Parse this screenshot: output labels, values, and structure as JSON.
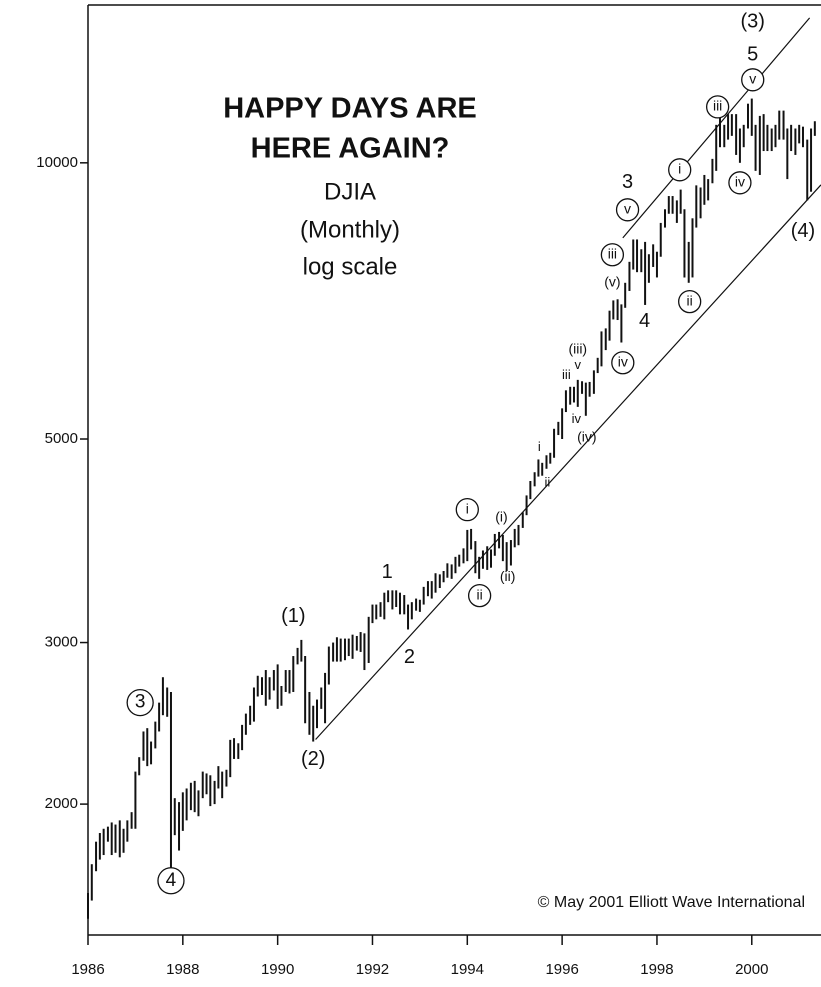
{
  "chart_data": {
    "type": "range_bar",
    "title": [
      "HAPPY DAYS ARE",
      "HERE AGAIN?"
    ],
    "subtitle": [
      "DJIA",
      "(Monthly)",
      "log scale"
    ],
    "note": "© May 2001 Elliott Wave International",
    "log_scale": true,
    "color": "#111111",
    "xlim": [
      1986,
      2001.46
    ],
    "xticks": [
      1986,
      1988,
      1990,
      1992,
      1994,
      1996,
      1998,
      2000
    ],
    "ylim": [
      1440,
      14860
    ],
    "yticks": [
      2000,
      3000,
      5000,
      10000
    ],
    "x": [
      1986,
      1986.08,
      1986.17,
      1986.25,
      1986.33,
      1986.42,
      1986.5,
      1986.58,
      1986.67,
      1986.75,
      1986.83,
      1986.92,
      1987,
      1987.08,
      1987.17,
      1987.25,
      1987.33,
      1987.42,
      1987.5,
      1987.58,
      1987.67,
      1987.75,
      1987.83,
      1987.92,
      1988,
      1988.08,
      1988.17,
      1988.25,
      1988.33,
      1988.42,
      1988.5,
      1988.58,
      1988.67,
      1988.75,
      1988.83,
      1988.92,
      1989,
      1989.08,
      1989.17,
      1989.25,
      1989.33,
      1989.42,
      1989.5,
      1989.58,
      1989.67,
      1989.75,
      1989.83,
      1989.92,
      1990,
      1990.08,
      1990.17,
      1990.25,
      1990.33,
      1990.42,
      1990.5,
      1990.58,
      1990.67,
      1990.75,
      1990.83,
      1990.92,
      1991,
      1991.08,
      1991.17,
      1991.25,
      1991.33,
      1991.42,
      1991.5,
      1991.58,
      1991.67,
      1991.75,
      1991.83,
      1991.92,
      1992,
      1992.08,
      1992.17,
      1992.25,
      1992.33,
      1992.42,
      1992.5,
      1992.58,
      1992.67,
      1992.75,
      1992.83,
      1992.92,
      1993,
      1993.08,
      1993.17,
      1993.25,
      1993.33,
      1993.42,
      1993.5,
      1993.58,
      1993.67,
      1993.75,
      1993.83,
      1993.92,
      1994,
      1994.08,
      1994.17,
      1994.25,
      1994.33,
      1994.42,
      1994.5,
      1994.58,
      1994.67,
      1994.75,
      1994.83,
      1994.92,
      1995,
      1995.08,
      1995.17,
      1995.25,
      1995.33,
      1995.42,
      1995.5,
      1995.58,
      1995.67,
      1995.75,
      1995.83,
      1995.92,
      1996,
      1996.08,
      1996.17,
      1996.25,
      1996.33,
      1996.42,
      1996.5,
      1996.58,
      1996.67,
      1996.75,
      1996.83,
      1996.92,
      1997,
      1997.08,
      1997.17,
      1997.25,
      1997.33,
      1997.42,
      1997.5,
      1997.58,
      1997.67,
      1997.75,
      1997.83,
      1997.92,
      1998,
      1998.08,
      1998.17,
      1998.25,
      1998.33,
      1998.42,
      1998.5,
      1998.58,
      1998.67,
      1998.75,
      1998.83,
      1998.92,
      1999,
      1999.08,
      1999.17,
      1999.25,
      1999.33,
      1999.42,
      1999.5,
      1999.58,
      1999.67,
      1999.75,
      1999.83,
      1999.92,
      2000,
      2000.08,
      2000.17,
      2000.25,
      2000.33,
      2000.42,
      2000.5,
      2000.58,
      2000.67,
      2000.75,
      2000.83,
      2000.92,
      2001,
      2001.08,
      2001.17,
      2001.25,
      2001.33
    ],
    "lows": [
      1500,
      1570,
      1690,
      1740,
      1760,
      1820,
      1760,
      1770,
      1750,
      1770,
      1820,
      1880,
      1880,
      2150,
      2230,
      2200,
      2210,
      2300,
      2400,
      2500,
      2490,
      1700,
      1850,
      1780,
      1870,
      1920,
      1970,
      1960,
      1940,
      2030,
      2050,
      1990,
      2000,
      2080,
      2030,
      2090,
      2140,
      2240,
      2240,
      2290,
      2380,
      2440,
      2460,
      2620,
      2630,
      2560,
      2600,
      2660,
      2540,
      2560,
      2650,
      2640,
      2650,
      2840,
      2860,
      2450,
      2380,
      2340,
      2420,
      2540,
      2450,
      2700,
      2860,
      2860,
      2860,
      2870,
      2900,
      2880,
      2940,
      2930,
      2800,
      2850,
      3150,
      3180,
      3200,
      3180,
      3320,
      3260,
      3280,
      3220,
      3220,
      3100,
      3180,
      3250,
      3240,
      3300,
      3370,
      3350,
      3400,
      3440,
      3490,
      3530,
      3520,
      3570,
      3630,
      3660,
      3680,
      3790,
      3570,
      3520,
      3610,
      3600,
      3620,
      3730,
      3800,
      3680,
      3590,
      3640,
      3810,
      3830,
      4000,
      4130,
      4300,
      4440,
      4550,
      4560,
      4640,
      4700,
      4770,
      5050,
      5000,
      5350,
      5450,
      5480,
      5420,
      5600,
      5300,
      5560,
      5600,
      5900,
      6000,
      6250,
      6400,
      6750,
      6740,
      6370,
      6950,
      7250,
      7650,
      7600,
      7600,
      7000,
      7400,
      7700,
      7500,
      7900,
      8500,
      8800,
      8800,
      8600,
      8800,
      7500,
      7400,
      7500,
      8500,
      8700,
      9000,
      9100,
      9500,
      9800,
      10400,
      10400,
      10600,
      10700,
      10200,
      10000,
      10400,
      10900,
      10700,
      9800,
      9700,
      10300,
      10300,
      10300,
      10400,
      10600,
      10600,
      9600,
      10300,
      10200,
      10500,
      10400,
      9100,
      9300,
      10700
    ],
    "highs": [
      1600,
      1720,
      1820,
      1860,
      1880,
      1890,
      1910,
      1900,
      1920,
      1880,
      1920,
      1960,
      2170,
      2250,
      2400,
      2420,
      2340,
      2460,
      2580,
      2750,
      2680,
      2650,
      2030,
      2010,
      2060,
      2080,
      2110,
      2120,
      2070,
      2170,
      2160,
      2150,
      2120,
      2200,
      2170,
      2180,
      2350,
      2360,
      2330,
      2440,
      2510,
      2560,
      2680,
      2760,
      2750,
      2800,
      2750,
      2800,
      2840,
      2690,
      2800,
      2800,
      2900,
      2960,
      3020,
      2900,
      2650,
      2560,
      2600,
      2680,
      2780,
      2970,
      3000,
      3040,
      3030,
      3030,
      3030,
      3060,
      3050,
      3080,
      3070,
      3200,
      3300,
      3300,
      3320,
      3400,
      3420,
      3420,
      3420,
      3400,
      3380,
      3300,
      3320,
      3350,
      3340,
      3450,
      3500,
      3500,
      3570,
      3560,
      3590,
      3660,
      3650,
      3720,
      3740,
      3800,
      3980,
      3990,
      3870,
      3720,
      3780,
      3820,
      3790,
      3940,
      3960,
      3930,
      3860,
      3880,
      3990,
      4030,
      4160,
      4340,
      4500,
      4600,
      4750,
      4710,
      4800,
      4830,
      5130,
      5220,
      5400,
      5650,
      5700,
      5700,
      5800,
      5780,
      5760,
      5770,
      5940,
      6130,
      6550,
      6600,
      6900,
      7080,
      7100,
      7010,
      7400,
      7800,
      8250,
      8250,
      8050,
      8200,
      7950,
      8150,
      8000,
      8600,
      8900,
      9200,
      9200,
      9100,
      9350,
      8900,
      8200,
      8700,
      9450,
      9400,
      9700,
      9600,
      10100,
      11000,
      11300,
      11000,
      11300,
      11300,
      11300,
      10900,
      11000,
      11600,
      11750,
      11000,
      11250,
      11300,
      11000,
      10900,
      11000,
      11400,
      11400,
      10900,
      11000,
      10900,
      11000,
      10950,
      10600,
      10900,
      11100
    ],
    "trendlines": [
      {
        "x": [
          1990.8,
          2001.46
        ],
        "y": [
          2352,
          9463
        ]
      },
      {
        "x": [
          1997.28,
          2001.22
        ],
        "y": [
          8284,
          14388
        ]
      }
    ],
    "annotations": [
      {
        "text": "(3)",
        "x": 2000.02,
        "y": 14240,
        "circled": false
      },
      {
        "text": "5",
        "x": 2000.02,
        "y": 13108,
        "circled": false
      },
      {
        "text": "v",
        "x": 2000.02,
        "y": 12316,
        "circled": true
      },
      {
        "text": "iii",
        "x": 1999.28,
        "y": 11507,
        "circled": true
      },
      {
        "text": "i",
        "x": 1998.48,
        "y": 9826,
        "circled": true
      },
      {
        "text": "iv",
        "x": 1999.75,
        "y": 9511,
        "circled": true
      },
      {
        "text": "3",
        "x": 1997.38,
        "y": 9511,
        "circled": false
      },
      {
        "text": "v",
        "x": 1997.38,
        "y": 8888,
        "circled": true
      },
      {
        "text": "iii",
        "x": 1997.06,
        "y": 7940,
        "circled": true
      },
      {
        "text": "(v)",
        "x": 1997.06,
        "y": 7400,
        "circled": false
      },
      {
        "text": "4",
        "x": 1997.74,
        "y": 6710,
        "circled": false
      },
      {
        "text": "ii",
        "x": 1998.69,
        "y": 7059,
        "circled": true
      },
      {
        "text": "(iii)",
        "x": 1996.33,
        "y": 6255,
        "circled": false
      },
      {
        "text": "v",
        "x": 1996.33,
        "y": 6010,
        "circled": false
      },
      {
        "text": "iii",
        "x": 1996.09,
        "y": 5861,
        "circled": false
      },
      {
        "text": "iv",
        "x": 1996.3,
        "y": 5248,
        "circled": false
      },
      {
        "text": "iv",
        "x": 1997.28,
        "y": 6055,
        "circled": true
      },
      {
        "text": "(iv)",
        "x": 1996.52,
        "y": 5017,
        "circled": false
      },
      {
        "text": "i",
        "x": 1995.52,
        "y": 4892,
        "circled": false
      },
      {
        "text": "ii",
        "x": 1995.69,
        "y": 4479,
        "circled": false
      },
      {
        "text": "i",
        "x": 1994.0,
        "y": 4188,
        "circled": true
      },
      {
        "text": "(i)",
        "x": 1994.72,
        "y": 4105,
        "circled": false
      },
      {
        "text": "ii",
        "x": 1994.26,
        "y": 3375,
        "circled": true
      },
      {
        "text": "(ii)",
        "x": 1994.85,
        "y": 3532,
        "circled": false
      },
      {
        "text": "1",
        "x": 1992.31,
        "y": 3575,
        "circled": false
      },
      {
        "text": "2",
        "x": 1992.78,
        "y": 2889,
        "circled": false
      },
      {
        "text": "(1)",
        "x": 1990.33,
        "y": 3201,
        "circled": false
      },
      {
        "text": "(2)",
        "x": 1990.75,
        "y": 2237,
        "circled": false
      },
      {
        "text": "3",
        "x": 1987.1,
        "y": 2580,
        "circled": true
      },
      {
        "text": "4",
        "x": 1987.75,
        "y": 1650,
        "circled": true
      },
      {
        "text": "(4)",
        "x": 2001.08,
        "y": 8412,
        "circled": false
      }
    ]
  }
}
